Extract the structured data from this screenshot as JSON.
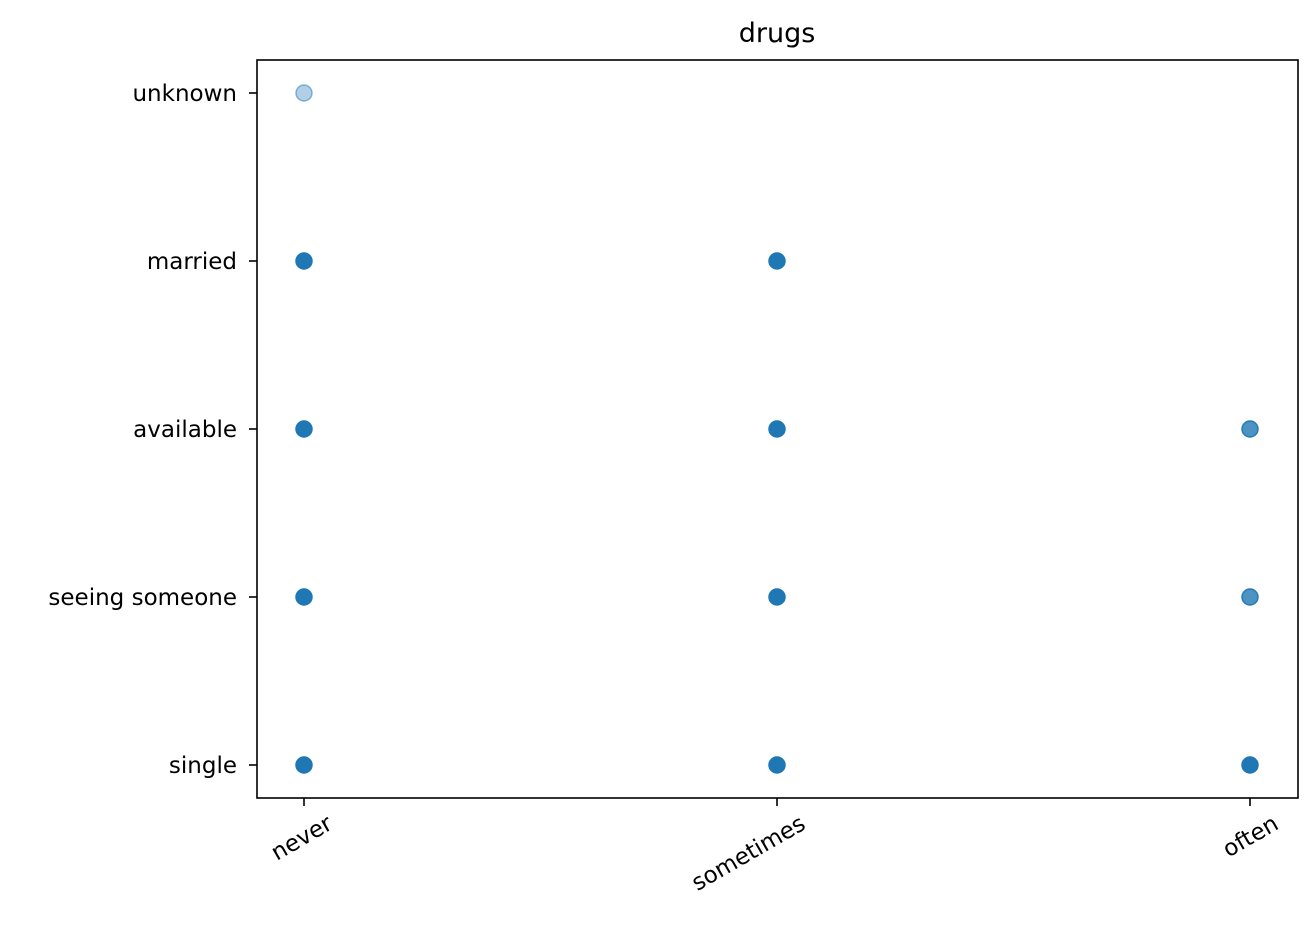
{
  "chart_data": {
    "type": "scatter",
    "title": "drugs",
    "xlabel": "",
    "ylabel": "",
    "x_categories": [
      "never",
      "sometimes",
      "often"
    ],
    "y_categories": [
      "single",
      "seeing someone",
      "available",
      "married",
      "unknown"
    ],
    "grid": false,
    "marker_color": "#1f77b4",
    "points": [
      {
        "x": "never",
        "y": "unknown",
        "opacity": 0.35
      },
      {
        "x": "never",
        "y": "married",
        "opacity": 1.0
      },
      {
        "x": "sometimes",
        "y": "married",
        "opacity": 1.0
      },
      {
        "x": "never",
        "y": "available",
        "opacity": 1.0
      },
      {
        "x": "sometimes",
        "y": "available",
        "opacity": 1.0
      },
      {
        "x": "often",
        "y": "available",
        "opacity": 0.8
      },
      {
        "x": "never",
        "y": "seeing someone",
        "opacity": 1.0
      },
      {
        "x": "sometimes",
        "y": "seeing someone",
        "opacity": 1.0
      },
      {
        "x": "often",
        "y": "seeing someone",
        "opacity": 0.8
      },
      {
        "x": "never",
        "y": "single",
        "opacity": 1.0
      },
      {
        "x": "sometimes",
        "y": "single",
        "opacity": 1.0
      },
      {
        "x": "often",
        "y": "single",
        "opacity": 1.0
      }
    ]
  }
}
